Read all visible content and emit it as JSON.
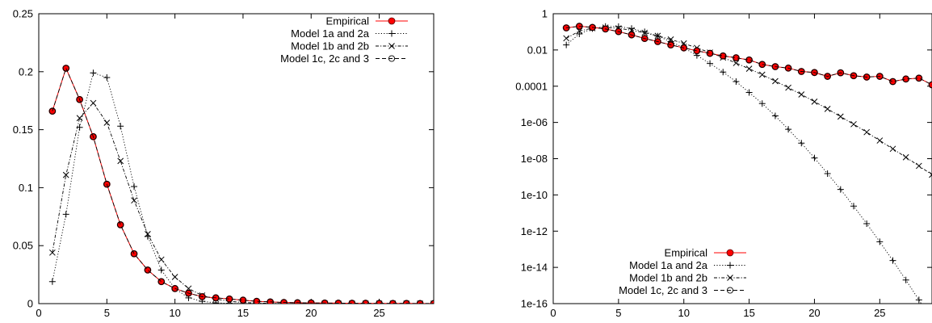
{
  "chart_data": [
    {
      "type": "line",
      "yscale": "linear",
      "xlim": [
        0,
        29
      ],
      "ylim": [
        0,
        0.25
      ],
      "xticks": [
        0,
        5,
        10,
        15,
        20,
        25
      ],
      "xtick_labels": [
        "0",
        "5",
        "10",
        "15",
        "20",
        "25"
      ],
      "yticks": [
        0,
        0.05,
        0.1,
        0.15,
        0.2,
        0.25
      ],
      "ytick_labels": [
        "0",
        "0.05",
        "0.1",
        "0.15",
        "0.2",
        "0.25"
      ],
      "grid": false,
      "legend_position": "top-right",
      "x": [
        1,
        2,
        3,
        4,
        5,
        6,
        7,
        8,
        9,
        10,
        11,
        12,
        13,
        14,
        15,
        16,
        17,
        18,
        19,
        20,
        21,
        22,
        23,
        24,
        25,
        26,
        27,
        28,
        29
      ],
      "series": [
        {
          "name": "Empirical",
          "color": "#ff0000",
          "marker": "filled-circle",
          "line": "solid",
          "values": [
            0.166,
            0.203,
            0.176,
            0.144,
            0.103,
            0.068,
            0.043,
            0.029,
            0.019,
            0.013,
            0.009,
            0.006,
            0.005,
            0.004,
            0.003,
            0.002,
            0.0015,
            0.001,
            0.0008,
            0.0006,
            0.0005,
            0.0004,
            0.0003,
            0.0003,
            0.0002,
            0.0002,
            0.0002,
            0.0001,
            0.0001
          ]
        },
        {
          "name": "Model 1a and 2a",
          "color": "#000000",
          "marker": "plus",
          "line": "dotted",
          "values": [
            0.019,
            0.077,
            0.152,
            0.199,
            0.195,
            0.153,
            0.101,
            0.058,
            0.029,
            0.013,
            0.005,
            0.002,
            0.0007,
            0.0002,
            5e-05,
            1e-05,
            0,
            0,
            0,
            0,
            0,
            0,
            0,
            0,
            0,
            0,
            0,
            0,
            0
          ]
        },
        {
          "name": "Model 1b and 2b",
          "color": "#000000",
          "marker": "cross",
          "line": "dashdot",
          "values": [
            0.044,
            0.111,
            0.16,
            0.173,
            0.156,
            0.123,
            0.089,
            0.06,
            0.038,
            0.023,
            0.013,
            0.007,
            0.004,
            0.002,
            0.001,
            0.0005,
            0.0003,
            0.0001,
            5e-05,
            2e-05,
            1e-05,
            0,
            0,
            0,
            0,
            0,
            0,
            0,
            0
          ]
        },
        {
          "name": "Model 1c, 2c and 3",
          "color": "#000000",
          "marker": "open-circle",
          "line": "dashed",
          "values": [
            0.166,
            0.203,
            0.176,
            0.144,
            0.103,
            0.068,
            0.043,
            0.029,
            0.019,
            0.013,
            0.009,
            0.006,
            0.005,
            0.004,
            0.003,
            0.002,
            0.0015,
            0.001,
            0.0008,
            0.0006,
            0.0005,
            0.0004,
            0.0003,
            0.0003,
            0.0002,
            0.0002,
            0.0002,
            0.0001,
            0.0001
          ]
        }
      ]
    },
    {
      "type": "line",
      "yscale": "log",
      "xlim": [
        0,
        29
      ],
      "ylim": [
        1e-16,
        1
      ],
      "xticks": [
        0,
        5,
        10,
        15,
        20,
        25
      ],
      "xtick_labels": [
        "0",
        "5",
        "10",
        "15",
        "20",
        "25"
      ],
      "yticks": [
        1,
        0.01,
        0.0001,
        1e-06,
        1e-08,
        1e-10,
        1e-12,
        1e-14,
        1e-16
      ],
      "ytick_labels": [
        "1",
        "0.01",
        "0.0001",
        "1e-06",
        "1e-08",
        "1e-10",
        "1e-12",
        "1e-14",
        "1e-16"
      ],
      "grid": false,
      "legend_position": "bottom-left",
      "x": [
        1,
        2,
        3,
        4,
        5,
        6,
        7,
        8,
        9,
        10,
        11,
        12,
        13,
        14,
        15,
        16,
        17,
        18,
        19,
        20,
        21,
        22,
        23,
        24,
        25,
        26,
        27,
        28,
        29
      ],
      "series": [
        {
          "name": "Empirical",
          "color": "#ff0000",
          "marker": "filled-circle",
          "line": "solid",
          "values": [
            0.166,
            0.203,
            0.176,
            0.144,
            0.103,
            0.068,
            0.043,
            0.029,
            0.019,
            0.013,
            0.009,
            0.0065,
            0.0047,
            0.0037,
            0.0028,
            0.0016,
            0.0012,
            0.001,
            0.00065,
            0.00057,
            0.00035,
            0.00055,
            0.00038,
            0.00032,
            0.00035,
            0.00018,
            0.00025,
            0.00028,
            0.00012
          ]
        },
        {
          "name": "Model 1a and 2a",
          "color": "#000000",
          "marker": "plus",
          "line": "dotted",
          "values": [
            0.019,
            0.077,
            0.152,
            0.199,
            0.195,
            0.153,
            0.101,
            0.058,
            0.029,
            0.013,
            0.005,
            0.0018,
            0.0006,
            0.00018,
            4.5e-05,
            1.1e-05,
            2.3e-06,
            4.2e-07,
            7.2e-08,
            1.1e-08,
            1.5e-09,
            2e-10,
            2.4e-11,
            2.6e-12,
            2.6e-13,
            2.4e-14,
            2e-15,
            1.6e-16,
            1.1e-17
          ]
        },
        {
          "name": "Model 1b and 2b",
          "color": "#000000",
          "marker": "cross",
          "line": "dashdot",
          "values": [
            0.044,
            0.111,
            0.16,
            0.173,
            0.156,
            0.123,
            0.089,
            0.06,
            0.038,
            0.023,
            0.013,
            0.0072,
            0.0038,
            0.0019,
            0.00092,
            0.00043,
            0.00019,
            8.3e-05,
            3.5e-05,
            1.4e-05,
            5.6e-06,
            2.1e-06,
            8e-07,
            2.9e-07,
            1e-07,
            3.5e-08,
            1.2e-08,
            4e-09,
            1.3e-09
          ]
        },
        {
          "name": "Model 1c, 2c and 3",
          "color": "#000000",
          "marker": "open-circle",
          "line": "dashed",
          "values": [
            0.166,
            0.203,
            0.176,
            0.144,
            0.103,
            0.068,
            0.043,
            0.029,
            0.019,
            0.013,
            0.009,
            0.0065,
            0.0047,
            0.0037,
            0.0028,
            0.0016,
            0.0012,
            0.001,
            0.00065,
            0.00057,
            0.00035,
            0.00055,
            0.00038,
            0.00032,
            0.00035,
            0.00018,
            0.00025,
            0.00028,
            0.00012
          ]
        }
      ]
    }
  ]
}
